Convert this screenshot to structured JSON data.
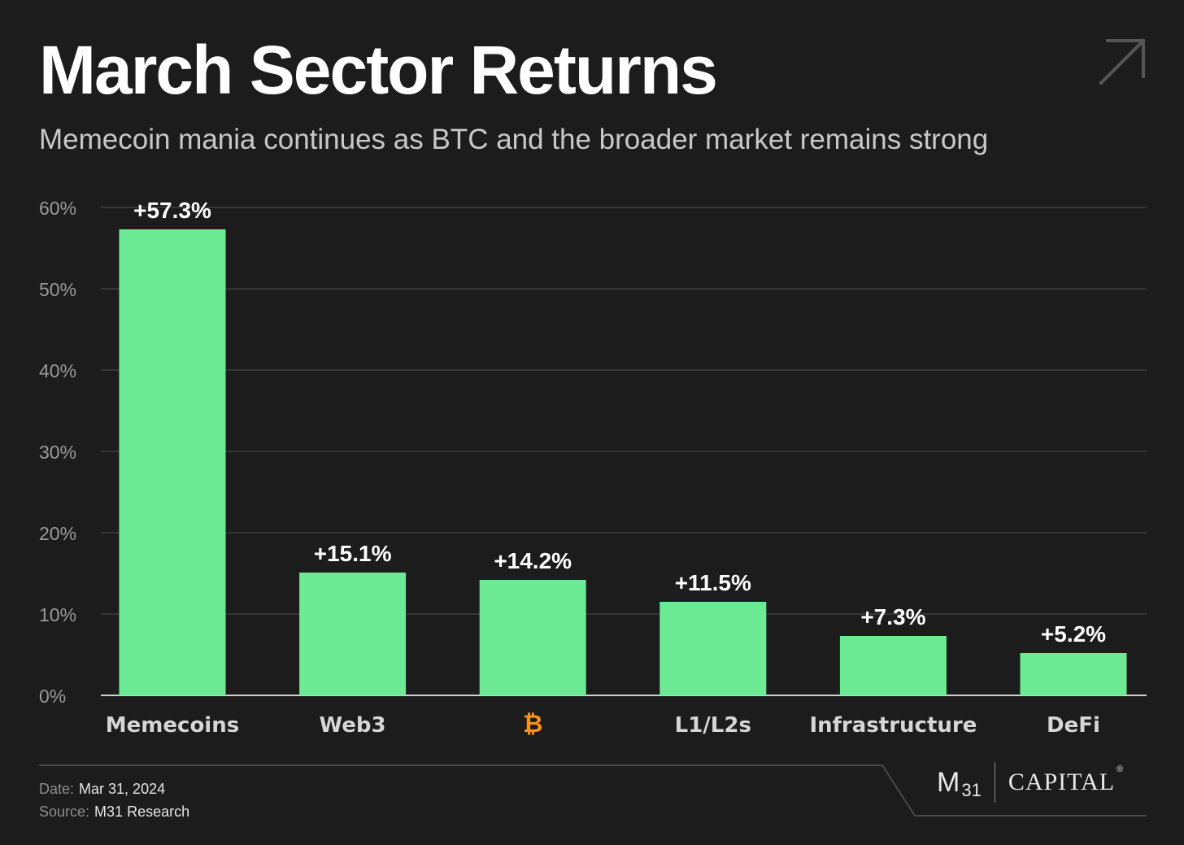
{
  "header": {
    "title": "March Sector Returns",
    "subtitle": "Memecoin mania continues as BTC and the broader market remains strong"
  },
  "chart_data": {
    "type": "bar",
    "categories": [
      "Memecoins",
      "Web3",
      "₿",
      "L1/L2s",
      "Infrastructure",
      "DeFi"
    ],
    "values": [
      57.3,
      15.1,
      14.2,
      11.5,
      7.3,
      5.2
    ],
    "data_labels": [
      "+57.3%",
      "+15.1%",
      "+14.2%",
      "+11.5%",
      "+7.3%",
      "+5.2%"
    ],
    "y_ticks": [
      "0%",
      "10%",
      "20%",
      "30%",
      "40%",
      "50%",
      "60%"
    ],
    "ylim": [
      0,
      60
    ],
    "grid": true,
    "colors": {
      "bar": "#6cea94",
      "grid": "#3e3e3e",
      "axis": "#d0d0d0",
      "tick": "#9a9a9a",
      "category": "#d6d6d6",
      "btc": "#f7931a"
    }
  },
  "footer": {
    "date_label": "Date:",
    "date_value": "Mar 31, 2024",
    "source_label": "Source:",
    "source_value": "M31 Research"
  },
  "logo": {
    "m": "M",
    "sub": "31",
    "capital": "CAPITAL",
    "reg": "®"
  },
  "icons": {
    "corner": "arrow-up-right-icon"
  }
}
